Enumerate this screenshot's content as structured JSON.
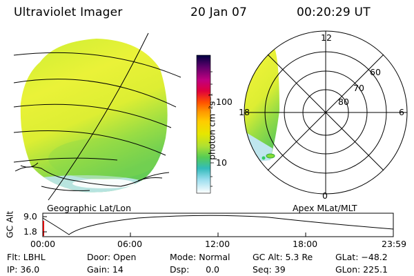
{
  "header": {
    "title": "Ultraviolet Imager",
    "date": "20 Jan 07",
    "time": "00:20:29 UT"
  },
  "left_panel": {
    "label": "Geographic Lat/Lon"
  },
  "colorbar": {
    "label": "photon cm⁻²s⁻¹",
    "ticks": [
      "100",
      "10"
    ],
    "colors": [
      "#000040",
      "#6a0070",
      "#c00080",
      "#e0003c",
      "#ff4000",
      "#ff9900",
      "#ffcc00",
      "#e6e600",
      "#ccee33",
      "#88dd33",
      "#33cc66",
      "#33bbcc",
      "#99ddee",
      "#ffffff"
    ]
  },
  "right_panel": {
    "label": "Apex MLat/MLT",
    "mlt_labels": {
      "top": "12",
      "left": "18",
      "right": "6",
      "bottom": "0"
    },
    "lat_labels": [
      "60",
      "70",
      "80"
    ]
  },
  "orbit_plot": {
    "ylabel": "GC Alt",
    "y_ticks": [
      "9.0",
      "1.8"
    ],
    "x_ticks": [
      "00:00",
      "06:00",
      "12:00",
      "18:00",
      "23:59"
    ]
  },
  "info": {
    "flt": "Flt: LBHL",
    "door": "Door: Open",
    "mode": "Mode: Normal",
    "gc_alt": "GC Alt: 5.3 Re",
    "glat": "GLat: −48.2",
    "ip": "IP: 36.0",
    "gain": "Gain: 14",
    "dsp": "Dsp:      0.0",
    "seq": "Seq: 39",
    "glon": "GLon: 225.1"
  }
}
